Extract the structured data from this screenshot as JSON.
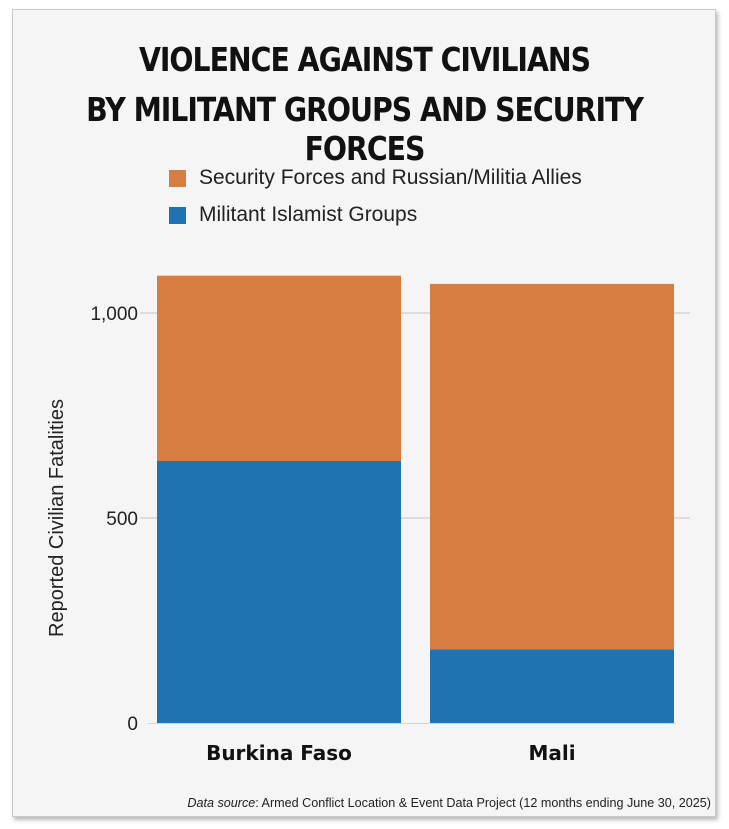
{
  "title_line1": "VIOLENCE AGAINST CIVILIANS",
  "title_line2": "BY MILITANT GROUPS AND SECURITY FORCES",
  "legend": [
    {
      "label": "Security Forces and Russian/Militia Allies",
      "color": "#d87d41"
    },
    {
      "label": "Militant Islamist Groups",
      "color": "#2073b2"
    }
  ],
  "source_prefix": "Data source",
  "source_text": ": Armed Conflict Location & Event Data Project (12 months ending June 30, 2025)",
  "chart_data": {
    "type": "bar",
    "stacked": true,
    "categories": [
      "Burkina Faso",
      "Mali"
    ],
    "series": [
      {
        "name": "Militant Islamist Groups",
        "color": "#2073b2",
        "values": [
          639,
          180
        ]
      },
      {
        "name": "Security Forces and Russian/Militia Allies",
        "color": "#d87d41",
        "values": [
          452,
          891
        ]
      }
    ],
    "ylabel": "Reported Civilian Fatalities",
    "xlabel": "",
    "ylim": [
      0,
      1100
    ],
    "yticks": [
      0,
      500,
      1000
    ],
    "ytick_labels": [
      "0",
      "500",
      "1,000"
    ],
    "grid": true,
    "legend_position": "top-left"
  }
}
